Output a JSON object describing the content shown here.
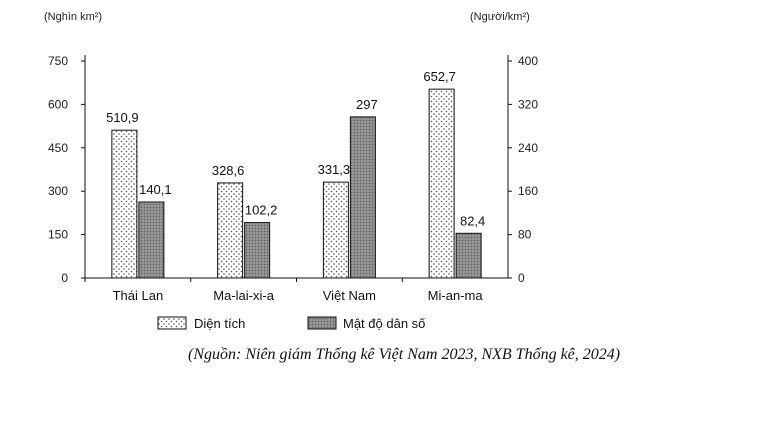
{
  "chart_data": {
    "type": "bar",
    "categories": [
      "Thái Lan",
      "Ma-lai-xi-a",
      "Việt Nam",
      "Mi-an-ma"
    ],
    "series": [
      {
        "name": "Diện tích",
        "axis": "left",
        "pattern": "dots",
        "values": [
          510.9,
          328.6,
          331.3,
          652.7
        ],
        "labels": [
          "510,9",
          "328,6",
          "331,3",
          "652,7"
        ]
      },
      {
        "name": "Mật độ dân số",
        "axis": "right",
        "pattern": "dense-gray",
        "values": [
          140.1,
          102.2,
          297,
          82.4
        ],
        "labels": [
          "140,1",
          "102,2",
          "297",
          "82,4"
        ]
      }
    ],
    "y_left": {
      "unit_label": "(Nghìn km²)",
      "ylim": [
        0,
        750
      ],
      "ticks": [
        "0",
        "150",
        "300",
        "450",
        "600",
        "750"
      ]
    },
    "y_right": {
      "unit_label": "(Người/km²)",
      "ylim": [
        0,
        400
      ],
      "ticks": [
        "0",
        "80",
        "160",
        "240",
        "320",
        "400"
      ]
    },
    "legend_position": "bottom",
    "grid": false
  },
  "source_note": "(Nguồn: Niên giám Thống kê Việt Nam 2023, NXB Thống kê, 2024)"
}
